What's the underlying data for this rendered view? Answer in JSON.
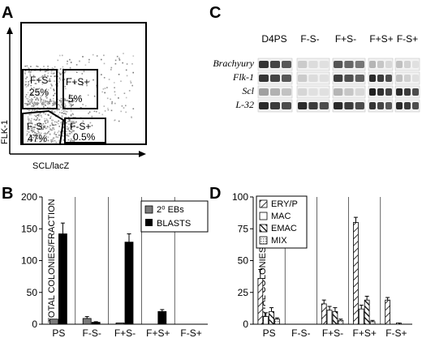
{
  "panels": {
    "A": {
      "letter": "A",
      "ylabel": "FLK-1",
      "xlabel": "SCL/lacZ",
      "gates": [
        {
          "label": "F+S-",
          "pct": "25%"
        },
        {
          "label": "F+S+",
          "pct": "5%"
        },
        {
          "label": "F-S-",
          "pct": "47%"
        },
        {
          "label": "F-S+",
          "pct": "0.5%"
        }
      ]
    },
    "B": {
      "letter": "B",
      "ylabel": "TOTAL COLONIES/FRACTION",
      "legend": [
        "2⁰ EBs",
        "BLASTS"
      ]
    },
    "C": {
      "letter": "C",
      "lanes": [
        "D4PS",
        "F-S-",
        "F+S-",
        "F+S+",
        "F-S+"
      ],
      "genes": [
        "Brachyury",
        "Flk-1",
        "Scl",
        "L-32"
      ]
    },
    "D": {
      "letter": "D",
      "ylabel": "TOTAL COLONIES/FRACTION",
      "legend": [
        "ERY/P",
        "MAC",
        "EMAC",
        "MIX"
      ]
    }
  },
  "chart_data": [
    {
      "panel": "B",
      "type": "bar",
      "categories": [
        "PS",
        "F-S-",
        "F+S-",
        "F+S+",
        "F-S+"
      ],
      "series": [
        {
          "name": "2⁰ EBs",
          "values": [
            8,
            9,
            2,
            0,
            0
          ],
          "errors": [
            0,
            3,
            0,
            0,
            0
          ],
          "color": "#7a7a7a"
        },
        {
          "name": "BLASTS",
          "values": [
            142,
            3,
            129,
            20,
            0
          ],
          "errors": [
            17,
            1,
            13,
            3,
            0
          ],
          "color": "#000000"
        }
      ],
      "ylabel": "TOTAL COLONIES/FRACTION",
      "ylim": [
        0,
        200
      ],
      "yticks": [
        0,
        50,
        100,
        150,
        200
      ],
      "legend_position": "top-right"
    },
    {
      "panel": "D",
      "type": "bar",
      "categories": [
        "PS",
        "F-S-",
        "F+S-",
        "F+S+",
        "F-S+"
      ],
      "series": [
        {
          "name": "ERY/P",
          "values": [
            36,
            0,
            16,
            80,
            19
          ],
          "errors": [
            7,
            0,
            3,
            4,
            2
          ]
        },
        {
          "name": "MAC",
          "values": [
            6,
            0,
            11,
            12,
            0
          ],
          "errors": [
            3,
            0,
            3,
            3,
            0
          ]
        },
        {
          "name": "EMAC",
          "values": [
            10,
            0,
            10,
            19,
            1
          ],
          "errors": [
            3,
            0,
            3,
            3,
            0
          ]
        },
        {
          "name": "MIX",
          "values": [
            4,
            0,
            3,
            2,
            0
          ],
          "errors": [
            1,
            0,
            1,
            1,
            0
          ]
        }
      ],
      "ylabel": "TOTAL COLONIES/FRACTION",
      "ylim": [
        0,
        100
      ],
      "yticks": [
        0,
        25,
        50,
        75,
        100
      ],
      "legend_position": "top-left"
    }
  ]
}
